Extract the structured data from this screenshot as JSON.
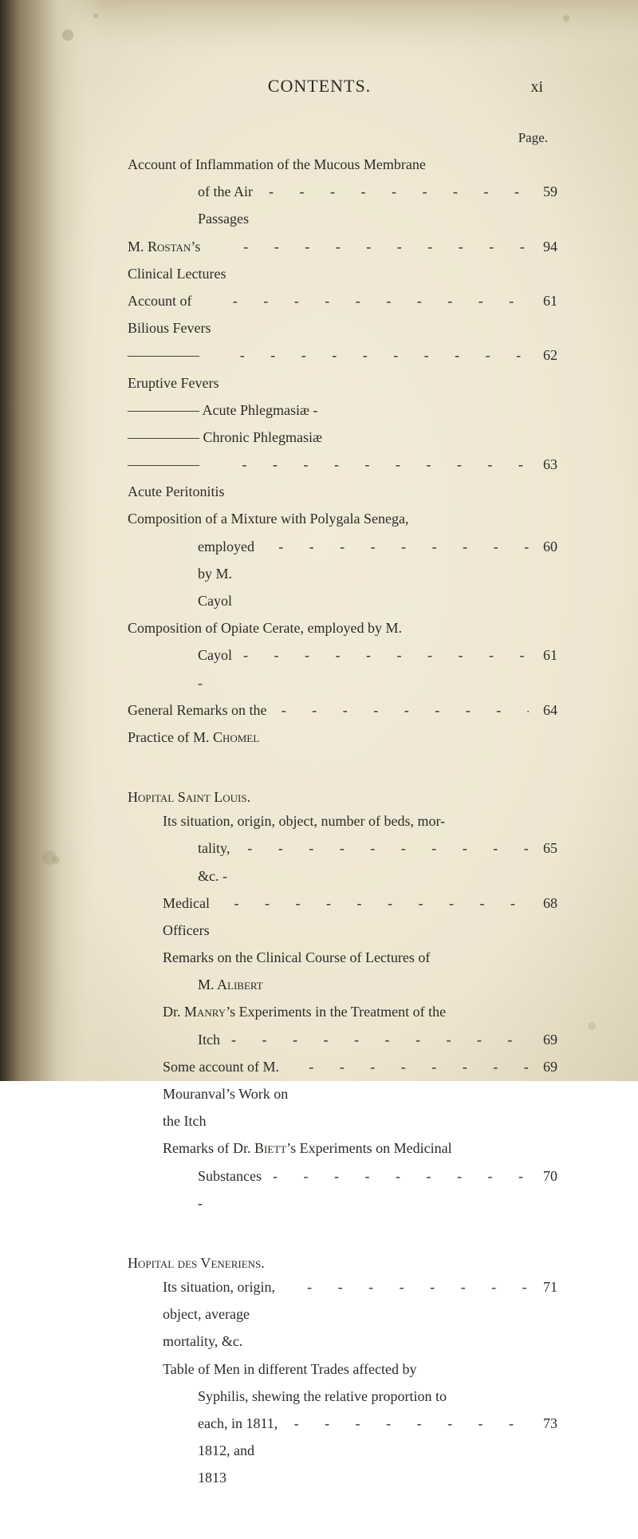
{
  "colors": {
    "paper": "#efe7d3",
    "edge_top": "#d9cfb4",
    "edge_left": "#c9bfa2",
    "vignette": "#3a3328",
    "ink": "#2b2b26",
    "spot": "#8c8260"
  },
  "typography": {
    "body_fontsize": 18,
    "header_fontsize": 22,
    "line_height": 1.9
  },
  "header": {
    "title": "CONTENTS.",
    "page_number": "xi"
  },
  "page_label": "Page.",
  "sections": [
    {
      "entries": [
        {
          "text": "Account of Inflammation of the Mucous Membrane",
          "indent": 0,
          "page": ""
        },
        {
          "text": "of the Air Passages",
          "indent": 2,
          "page": "59"
        },
        {
          "text_html": "M. R<span class='sc'>ostan</span>’s Clinical Lectures",
          "indent": 0,
          "page": "94"
        },
        {
          "text": "Account of Bilious Fevers",
          "indent": 0,
          "page": "61"
        },
        {
          "text": "————— Eruptive Fevers",
          "indent": 0,
          "page": "62"
        },
        {
          "text": "————— Acute Phlegmasiæ -",
          "indent": 0,
          "page": ""
        },
        {
          "text": "————— Chronic Phlegmasiæ",
          "indent": 0,
          "page": ""
        },
        {
          "text": "————— Acute Peritonitis",
          "indent": 0,
          "page": "63"
        },
        {
          "text": "Composition of a Mixture with Polygala Senega,",
          "indent": 0,
          "page": ""
        },
        {
          "text": "employed by M. Cayol",
          "indent": 2,
          "page": "60"
        },
        {
          "text": "Composition of Opiate Cerate, employed by M.",
          "indent": 0,
          "page": ""
        },
        {
          "text": "Cayol -",
          "indent": 2,
          "page": "61"
        },
        {
          "text_html": "General Remarks on the Practice of M. C<span class='sc'>homel</span>",
          "indent": 0,
          "page": "64"
        }
      ]
    },
    {
      "heading_html": "H<span class='sc'>opital</span> S<span class='sc'>aint</span> L<span class='sc'>ouis</span>.",
      "entries": [
        {
          "text": "Its situation, origin, object, number of beds, mor-",
          "indent": 1,
          "page": ""
        },
        {
          "text": "tality, &c. -",
          "indent": 2,
          "page": "65"
        },
        {
          "text": "Medical Officers",
          "indent": 1,
          "page": "68"
        },
        {
          "text": "Remarks on the Clinical Course of Lectures of",
          "indent": 1,
          "page": ""
        },
        {
          "text_html": "M. A<span class='sc'>libert</span>",
          "indent": 2,
          "page": ""
        },
        {
          "text_html": "Dr. M<span class='sc'>anry</span>’s Experiments in the Treatment of the",
          "indent": 1,
          "page": ""
        },
        {
          "text": "Itch",
          "indent": 2,
          "page": "69"
        },
        {
          "text": "Some account of M. Mouranval’s Work on the Itch",
          "indent": 1,
          "page": "69"
        },
        {
          "text_html": "Remarks of Dr. B<span class='sc'>iett</span>’s Experiments on Medicinal",
          "indent": 1,
          "page": ""
        },
        {
          "text": "Substances -",
          "indent": 2,
          "page": "70"
        }
      ]
    },
    {
      "heading_html": "H<span class='sc'>opital des</span> V<span class='sc'>eneriens</span>.",
      "entries": [
        {
          "text": "Its situation, origin, object, average mortality, &c.",
          "indent": 1,
          "page": "71"
        },
        {
          "text": "Table of Men in different Trades affected by",
          "indent": 1,
          "page": ""
        },
        {
          "text": "Syphilis, shewing the relative proportion to",
          "indent": 2,
          "page": ""
        },
        {
          "text": "each, in 1811, 1812, and 1813",
          "indent": 2,
          "page": "73"
        }
      ]
    }
  ]
}
